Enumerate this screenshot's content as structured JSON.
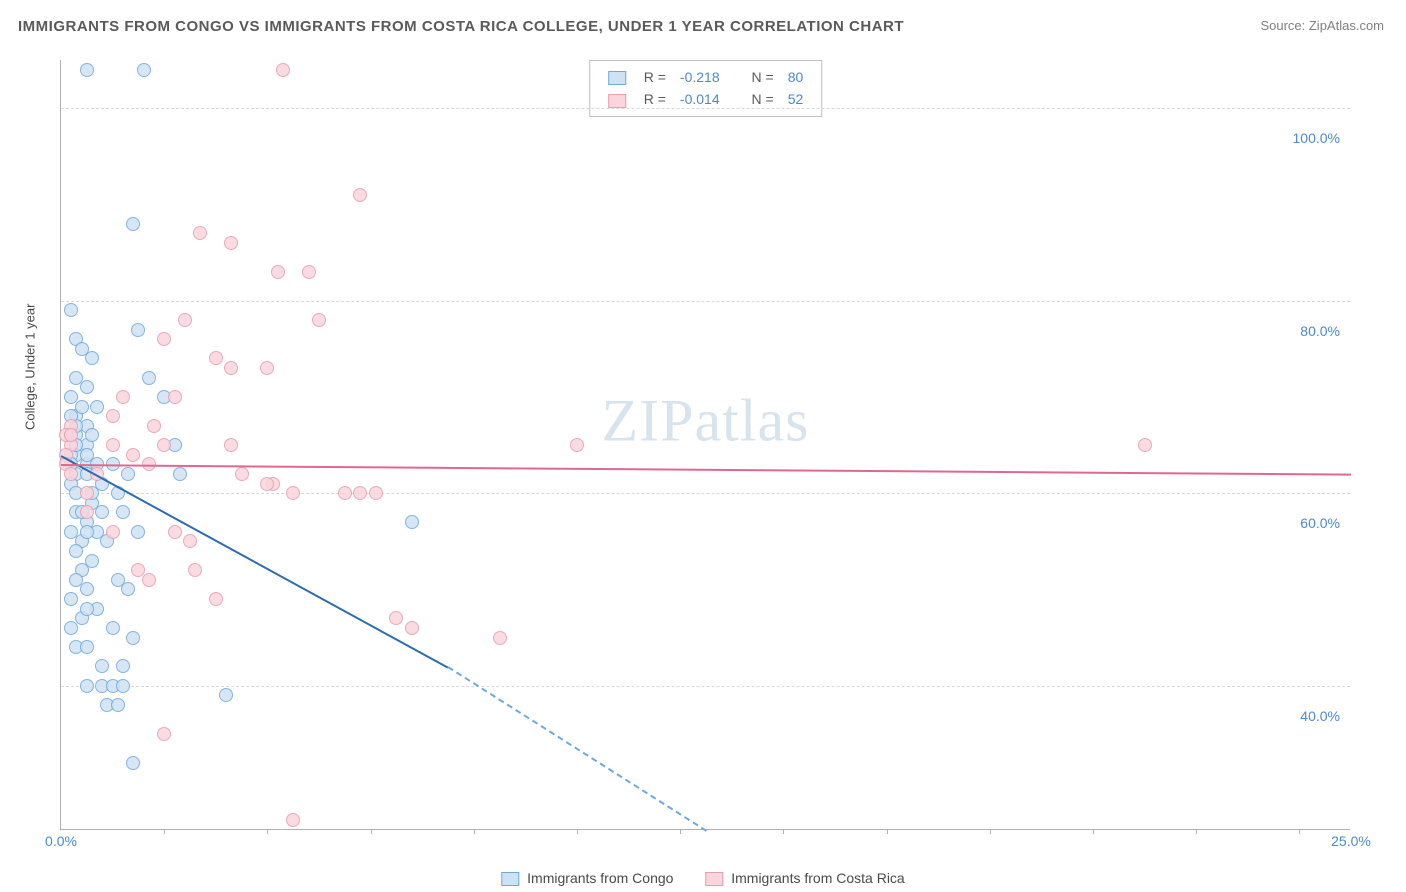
{
  "title": "IMMIGRANTS FROM CONGO VS IMMIGRANTS FROM COSTA RICA COLLEGE, UNDER 1 YEAR CORRELATION CHART",
  "source": "Source: ZipAtlas.com",
  "watermark": "ZIPatlas",
  "ylabel": "College, Under 1 year",
  "chart": {
    "type": "scatter",
    "xlim": [
      0,
      25
    ],
    "ylim": [
      25,
      105
    ],
    "xtick_label_left": "0.0%",
    "xtick_label_right": "25.0%",
    "xtick_minor": [
      2,
      4,
      6,
      8,
      10,
      12,
      14,
      16,
      18,
      20,
      22,
      24
    ],
    "ytick_labels": [
      "40.0%",
      "60.0%",
      "80.0%",
      "100.0%"
    ],
    "ytick_values": [
      40,
      60,
      80,
      100
    ],
    "grid_color": "#d8d8d8",
    "axis_color": "#b0b0b0",
    "background_color": "#ffffff",
    "marker_radius": 7,
    "marker_stroke_width": 1.5,
    "series": [
      {
        "name": "Immigrants from Congo",
        "fill": "#cfe2f3",
        "stroke": "#6fa8dc",
        "line_color": "#2b6cb0",
        "R": "-0.218",
        "N": "80",
        "trend": {
          "x1": 0,
          "y1": 64,
          "x2": 7.5,
          "y2": 42,
          "x2dash": 12.5,
          "y2dash": 25
        },
        "points": [
          [
            0.5,
            104
          ],
          [
            1.6,
            104
          ],
          [
            1.4,
            88
          ],
          [
            0.2,
            79
          ],
          [
            0.3,
            76
          ],
          [
            1.5,
            77
          ],
          [
            0.4,
            75
          ],
          [
            0.6,
            74
          ],
          [
            0.3,
            72
          ],
          [
            0.5,
            71
          ],
          [
            1.7,
            72
          ],
          [
            2.0,
            70
          ],
          [
            0.2,
            70
          ],
          [
            0.7,
            69
          ],
          [
            0.3,
            68
          ],
          [
            0.5,
            67
          ],
          [
            0.2,
            66
          ],
          [
            0.5,
            65
          ],
          [
            0.3,
            64
          ],
          [
            0.2,
            64
          ],
          [
            0.5,
            63
          ],
          [
            0.7,
            63
          ],
          [
            0.3,
            62
          ],
          [
            0.5,
            62
          ],
          [
            0.2,
            61
          ],
          [
            0.3,
            60
          ],
          [
            0.6,
            59
          ],
          [
            1.0,
            63
          ],
          [
            1.3,
            62
          ],
          [
            1.1,
            60
          ],
          [
            0.3,
            58
          ],
          [
            0.5,
            57
          ],
          [
            0.7,
            56
          ],
          [
            0.4,
            55
          ],
          [
            0.9,
            55
          ],
          [
            0.3,
            54
          ],
          [
            0.6,
            53
          ],
          [
            0.4,
            52
          ],
          [
            1.1,
            51
          ],
          [
            1.3,
            50
          ],
          [
            0.3,
            51
          ],
          [
            0.5,
            50
          ],
          [
            0.2,
            49
          ],
          [
            0.7,
            48
          ],
          [
            0.4,
            47
          ],
          [
            1.0,
            46
          ],
          [
            1.4,
            45
          ],
          [
            0.8,
            42
          ],
          [
            1.2,
            42
          ],
          [
            0.5,
            40
          ],
          [
            0.8,
            40
          ],
          [
            1.0,
            40
          ],
          [
            1.2,
            40
          ],
          [
            3.2,
            39
          ],
          [
            1.4,
            32
          ],
          [
            6.8,
            57
          ],
          [
            2.2,
            65
          ],
          [
            2.3,
            62
          ],
          [
            0.3,
            44
          ],
          [
            0.5,
            44
          ],
          [
            0.2,
            46
          ],
          [
            0.5,
            48
          ],
          [
            0.4,
            58
          ],
          [
            0.6,
            60
          ],
          [
            0.8,
            61
          ],
          [
            0.3,
            66
          ],
          [
            0.2,
            63
          ],
          [
            0.5,
            64
          ],
          [
            0.3,
            65
          ],
          [
            0.6,
            66
          ],
          [
            0.3,
            67
          ],
          [
            0.9,
            38
          ],
          [
            1.1,
            38
          ],
          [
            0.2,
            68
          ],
          [
            0.4,
            69
          ],
          [
            0.2,
            56
          ],
          [
            0.5,
            56
          ],
          [
            0.8,
            58
          ],
          [
            1.2,
            58
          ],
          [
            1.5,
            56
          ]
        ]
      },
      {
        "name": "Immigrants from Costa Rica",
        "fill": "#f9d5dc",
        "stroke": "#e99bb0",
        "line_color": "#e06890",
        "R": "-0.014",
        "N": "52",
        "trend": {
          "x1": 0,
          "y1": 63,
          "x2": 25,
          "y2": 62
        },
        "points": [
          [
            4.3,
            104
          ],
          [
            2.7,
            87
          ],
          [
            3.3,
            86
          ],
          [
            5.8,
            91
          ],
          [
            4.2,
            83
          ],
          [
            4.8,
            83
          ],
          [
            2.4,
            78
          ],
          [
            5.0,
            78
          ],
          [
            2.0,
            76
          ],
          [
            3.0,
            74
          ],
          [
            3.3,
            73
          ],
          [
            2.2,
            70
          ],
          [
            4.0,
            73
          ],
          [
            1.2,
            70
          ],
          [
            1.0,
            68
          ],
          [
            0.2,
            67
          ],
          [
            0.2,
            65
          ],
          [
            0.1,
            64
          ],
          [
            0.1,
            63
          ],
          [
            0.1,
            66
          ],
          [
            0.2,
            62
          ],
          [
            0.2,
            66
          ],
          [
            1.8,
            67
          ],
          [
            1.0,
            65
          ],
          [
            1.4,
            64
          ],
          [
            1.7,
            63
          ],
          [
            2.0,
            65
          ],
          [
            3.3,
            65
          ],
          [
            3.5,
            62
          ],
          [
            4.1,
            61
          ],
          [
            4.5,
            60
          ],
          [
            5.5,
            60
          ],
          [
            5.8,
            60
          ],
          [
            6.1,
            60
          ],
          [
            4.0,
            61
          ],
          [
            2.2,
            56
          ],
          [
            2.5,
            55
          ],
          [
            1.0,
            56
          ],
          [
            2.6,
            52
          ],
          [
            1.7,
            51
          ],
          [
            3.0,
            49
          ],
          [
            6.5,
            47
          ],
          [
            6.8,
            46
          ],
          [
            8.5,
            45
          ],
          [
            10.0,
            65
          ],
          [
            21.0,
            65
          ],
          [
            2.0,
            35
          ],
          [
            4.5,
            26
          ],
          [
            1.5,
            52
          ],
          [
            0.5,
            58
          ],
          [
            0.5,
            60
          ],
          [
            0.7,
            62
          ]
        ]
      }
    ]
  },
  "legend_top": {
    "r_label": "R =",
    "n_label": "N ="
  }
}
